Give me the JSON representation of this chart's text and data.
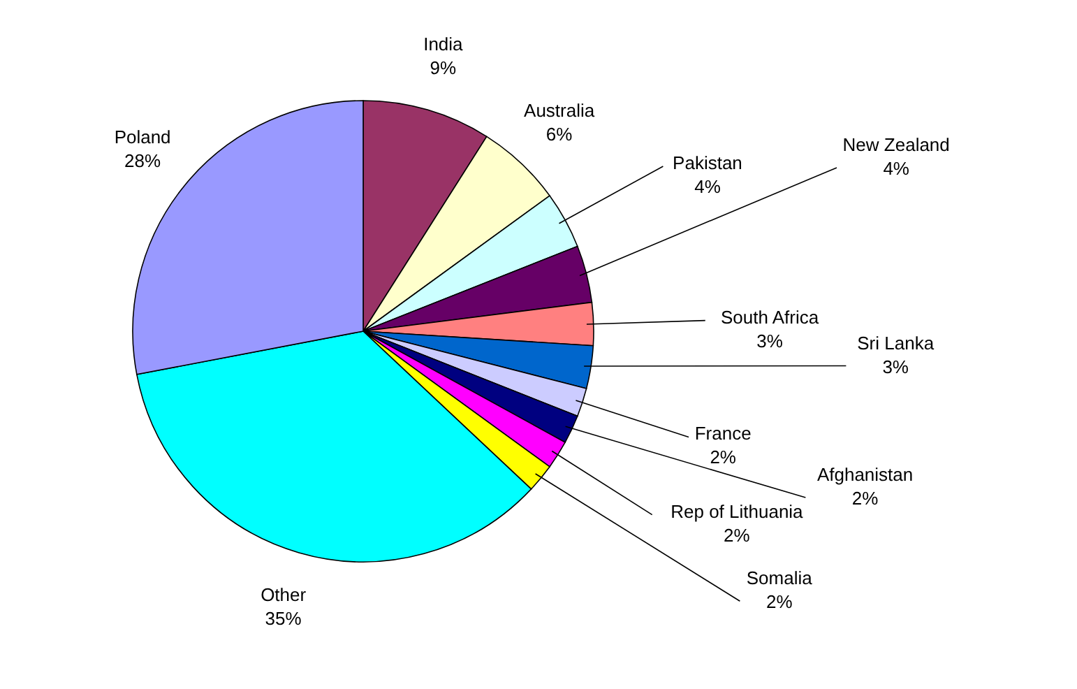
{
  "chart_data": {
    "type": "pie",
    "categories": [
      "India",
      "Australia",
      "Pakistan",
      "New Zealand",
      "South Africa",
      "Sri Lanka",
      "France",
      "Afghanistan",
      "Rep of Lithuania",
      "Somalia",
      "Other",
      "Poland"
    ],
    "values": [
      9,
      6,
      4,
      4,
      3,
      3,
      2,
      2,
      2,
      2,
      35,
      28
    ],
    "colors": [
      "#993366",
      "#ffffcc",
      "#ccffff",
      "#660066",
      "#ff8080",
      "#0066cc",
      "#ccccff",
      "#000080",
      "#ff00ff",
      "#ffff00",
      "#00ffff",
      "#9999ff"
    ],
    "value_labels": [
      "9%",
      "6%",
      "4%",
      "4%",
      "3%",
      "3%",
      "2%",
      "2%",
      "2%",
      "2%",
      "35%",
      "28%"
    ],
    "legend": false
  }
}
